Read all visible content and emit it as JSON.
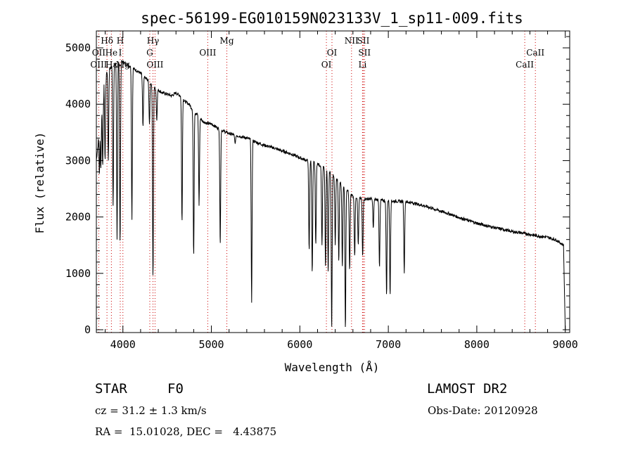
{
  "chart_data": {
    "type": "line",
    "title": "spec-56199-EG010159N023133V_1_sp11-009.fits",
    "xlabel": "Wavelength (Å)",
    "ylabel": "Flux (relative)",
    "xlim": [
      3700,
      9050
    ],
    "ylim": [
      -50,
      5300
    ],
    "xticks": [
      4000,
      5000,
      6000,
      7000,
      8000,
      9000
    ],
    "yticks": [
      0,
      1000,
      2000,
      3000,
      4000,
      5000
    ],
    "grid": false,
    "legend": "none",
    "line_color": "#000000",
    "marker_color": "#cc0000",
    "continuum": [
      [
        3700,
        3000
      ],
      [
        3720,
        3300
      ],
      [
        3740,
        3700
      ],
      [
        3760,
        4000
      ],
      [
        3780,
        4300
      ],
      [
        3800,
        4500
      ],
      [
        3830,
        4600
      ],
      [
        3860,
        4650
      ],
      [
        3900,
        4700
      ],
      [
        3950,
        4750
      ],
      [
        4000,
        4750
      ],
      [
        4050,
        4700
      ],
      [
        4100,
        4650
      ],
      [
        4150,
        4600
      ],
      [
        4200,
        4550
      ],
      [
        4250,
        4470
      ],
      [
        4300,
        4400
      ],
      [
        4350,
        4300
      ],
      [
        4400,
        4250
      ],
      [
        4450,
        4200
      ],
      [
        4500,
        4180
      ],
      [
        4550,
        4150
      ],
      [
        4600,
        4200
      ],
      [
        4650,
        4150
      ],
      [
        4700,
        4050
      ],
      [
        4750,
        4000
      ],
      [
        4800,
        3870
      ],
      [
        4850,
        3800
      ],
      [
        4900,
        3700
      ],
      [
        4950,
        3660
      ],
      [
        5000,
        3650
      ],
      [
        5100,
        3550
      ],
      [
        5200,
        3480
      ],
      [
        5300,
        3440
      ],
      [
        5400,
        3400
      ],
      [
        5500,
        3330
      ],
      [
        5600,
        3270
      ],
      [
        5700,
        3230
      ],
      [
        5800,
        3170
      ],
      [
        5900,
        3120
      ],
      [
        6000,
        3050
      ],
      [
        6100,
        2990
      ],
      [
        6200,
        2940
      ],
      [
        6300,
        2850
      ],
      [
        6400,
        2700
      ],
      [
        6500,
        2530
      ],
      [
        6600,
        2370
      ],
      [
        6700,
        2320
      ],
      [
        6800,
        2320
      ],
      [
        6900,
        2300
      ],
      [
        7000,
        2280
      ],
      [
        7100,
        2280
      ],
      [
        7200,
        2270
      ],
      [
        7300,
        2240
      ],
      [
        7400,
        2200
      ],
      [
        7500,
        2150
      ],
      [
        7600,
        2100
      ],
      [
        7700,
        2050
      ],
      [
        7800,
        1990
      ],
      [
        7900,
        1940
      ],
      [
        8000,
        1890
      ],
      [
        8100,
        1850
      ],
      [
        8200,
        1810
      ],
      [
        8300,
        1780
      ],
      [
        8400,
        1740
      ],
      [
        8500,
        1720
      ],
      [
        8600,
        1690
      ],
      [
        8700,
        1660
      ],
      [
        8800,
        1640
      ],
      [
        8900,
        1590
      ],
      [
        8980,
        1500
      ],
      [
        9000,
        0
      ]
    ],
    "absorption_features": [
      [
        3734,
        2750
      ],
      [
        3750,
        2850
      ],
      [
        3771,
        2900
      ],
      [
        3798,
        3000
      ],
      [
        3835,
        3000
      ],
      [
        3889,
        2200
      ],
      [
        3934,
        1600
      ],
      [
        3968,
        1520
      ],
      [
        4102,
        1950
      ],
      [
        4227,
        3600
      ],
      [
        4300,
        3650
      ],
      [
        4340,
        900
      ],
      [
        4383,
        3700
      ],
      [
        4668,
        1900
      ],
      [
        4800,
        1300
      ],
      [
        4861,
        2200
      ],
      [
        5100,
        1500
      ],
      [
        5269,
        3300
      ],
      [
        5455,
        480
      ],
      [
        6105,
        1400
      ],
      [
        6140,
        1000
      ],
      [
        6180,
        1500
      ],
      [
        6250,
        1500
      ],
      [
        6290,
        1100
      ],
      [
        6320,
        1000
      ],
      [
        6360,
        0
      ],
      [
        6400,
        1500
      ],
      [
        6440,
        1200
      ],
      [
        6480,
        1100
      ],
      [
        6515,
        0
      ],
      [
        6563,
        1050
      ],
      [
        6620,
        1300
      ],
      [
        6660,
        1500
      ],
      [
        6710,
        1300
      ],
      [
        6830,
        1800
      ],
      [
        6900,
        1100
      ],
      [
        6980,
        600
      ],
      [
        7020,
        600
      ],
      [
        7180,
        1000
      ]
    ],
    "line_markers_upper": [
      {
        "label": "Hδ",
        "x": 3820
      },
      {
        "label": "H",
        "x": 3970
      },
      {
        "label": "Hγ",
        "x": 4340
      },
      {
        "label": "Mg",
        "x": 5175
      },
      {
        "label": "NII",
        "x": 6584
      },
      {
        "label": "SII",
        "x": 6717
      }
    ],
    "line_markers_mid": [
      {
        "label": "OII",
        "x": 3727
      },
      {
        "label": "He",
        "x": 3870
      },
      {
        "label": "I",
        "x": 3970
      },
      {
        "label": "G",
        "x": 4304
      },
      {
        "label": "OIII",
        "x": 4959
      },
      {
        "label": "OI",
        "x": 6363
      },
      {
        "label": "SII",
        "x": 6731
      },
      {
        "label": "CaII",
        "x": 8662
      }
    ],
    "line_markers_lower": [
      {
        "label": "OIII",
        "x": 3727
      },
      {
        "label": "Hε",
        "x": 3870
      },
      {
        "label": "Mg",
        "x": 4000
      },
      {
        "label": "OIII",
        "x": 4363
      },
      {
        "label": "OI",
        "x": 6300
      },
      {
        "label": "Li",
        "x": 6708
      },
      {
        "label": "CaII",
        "x": 8542
      }
    ]
  },
  "info": {
    "object_class": "STAR",
    "subclass": "F0",
    "survey": "LAMOST DR2",
    "cz": "cz = 31.2 ± 1.3 km/s",
    "obs_date": "Obs-Date: 20120928",
    "coords": "RA =  15.01028, DEC =   4.43875"
  }
}
